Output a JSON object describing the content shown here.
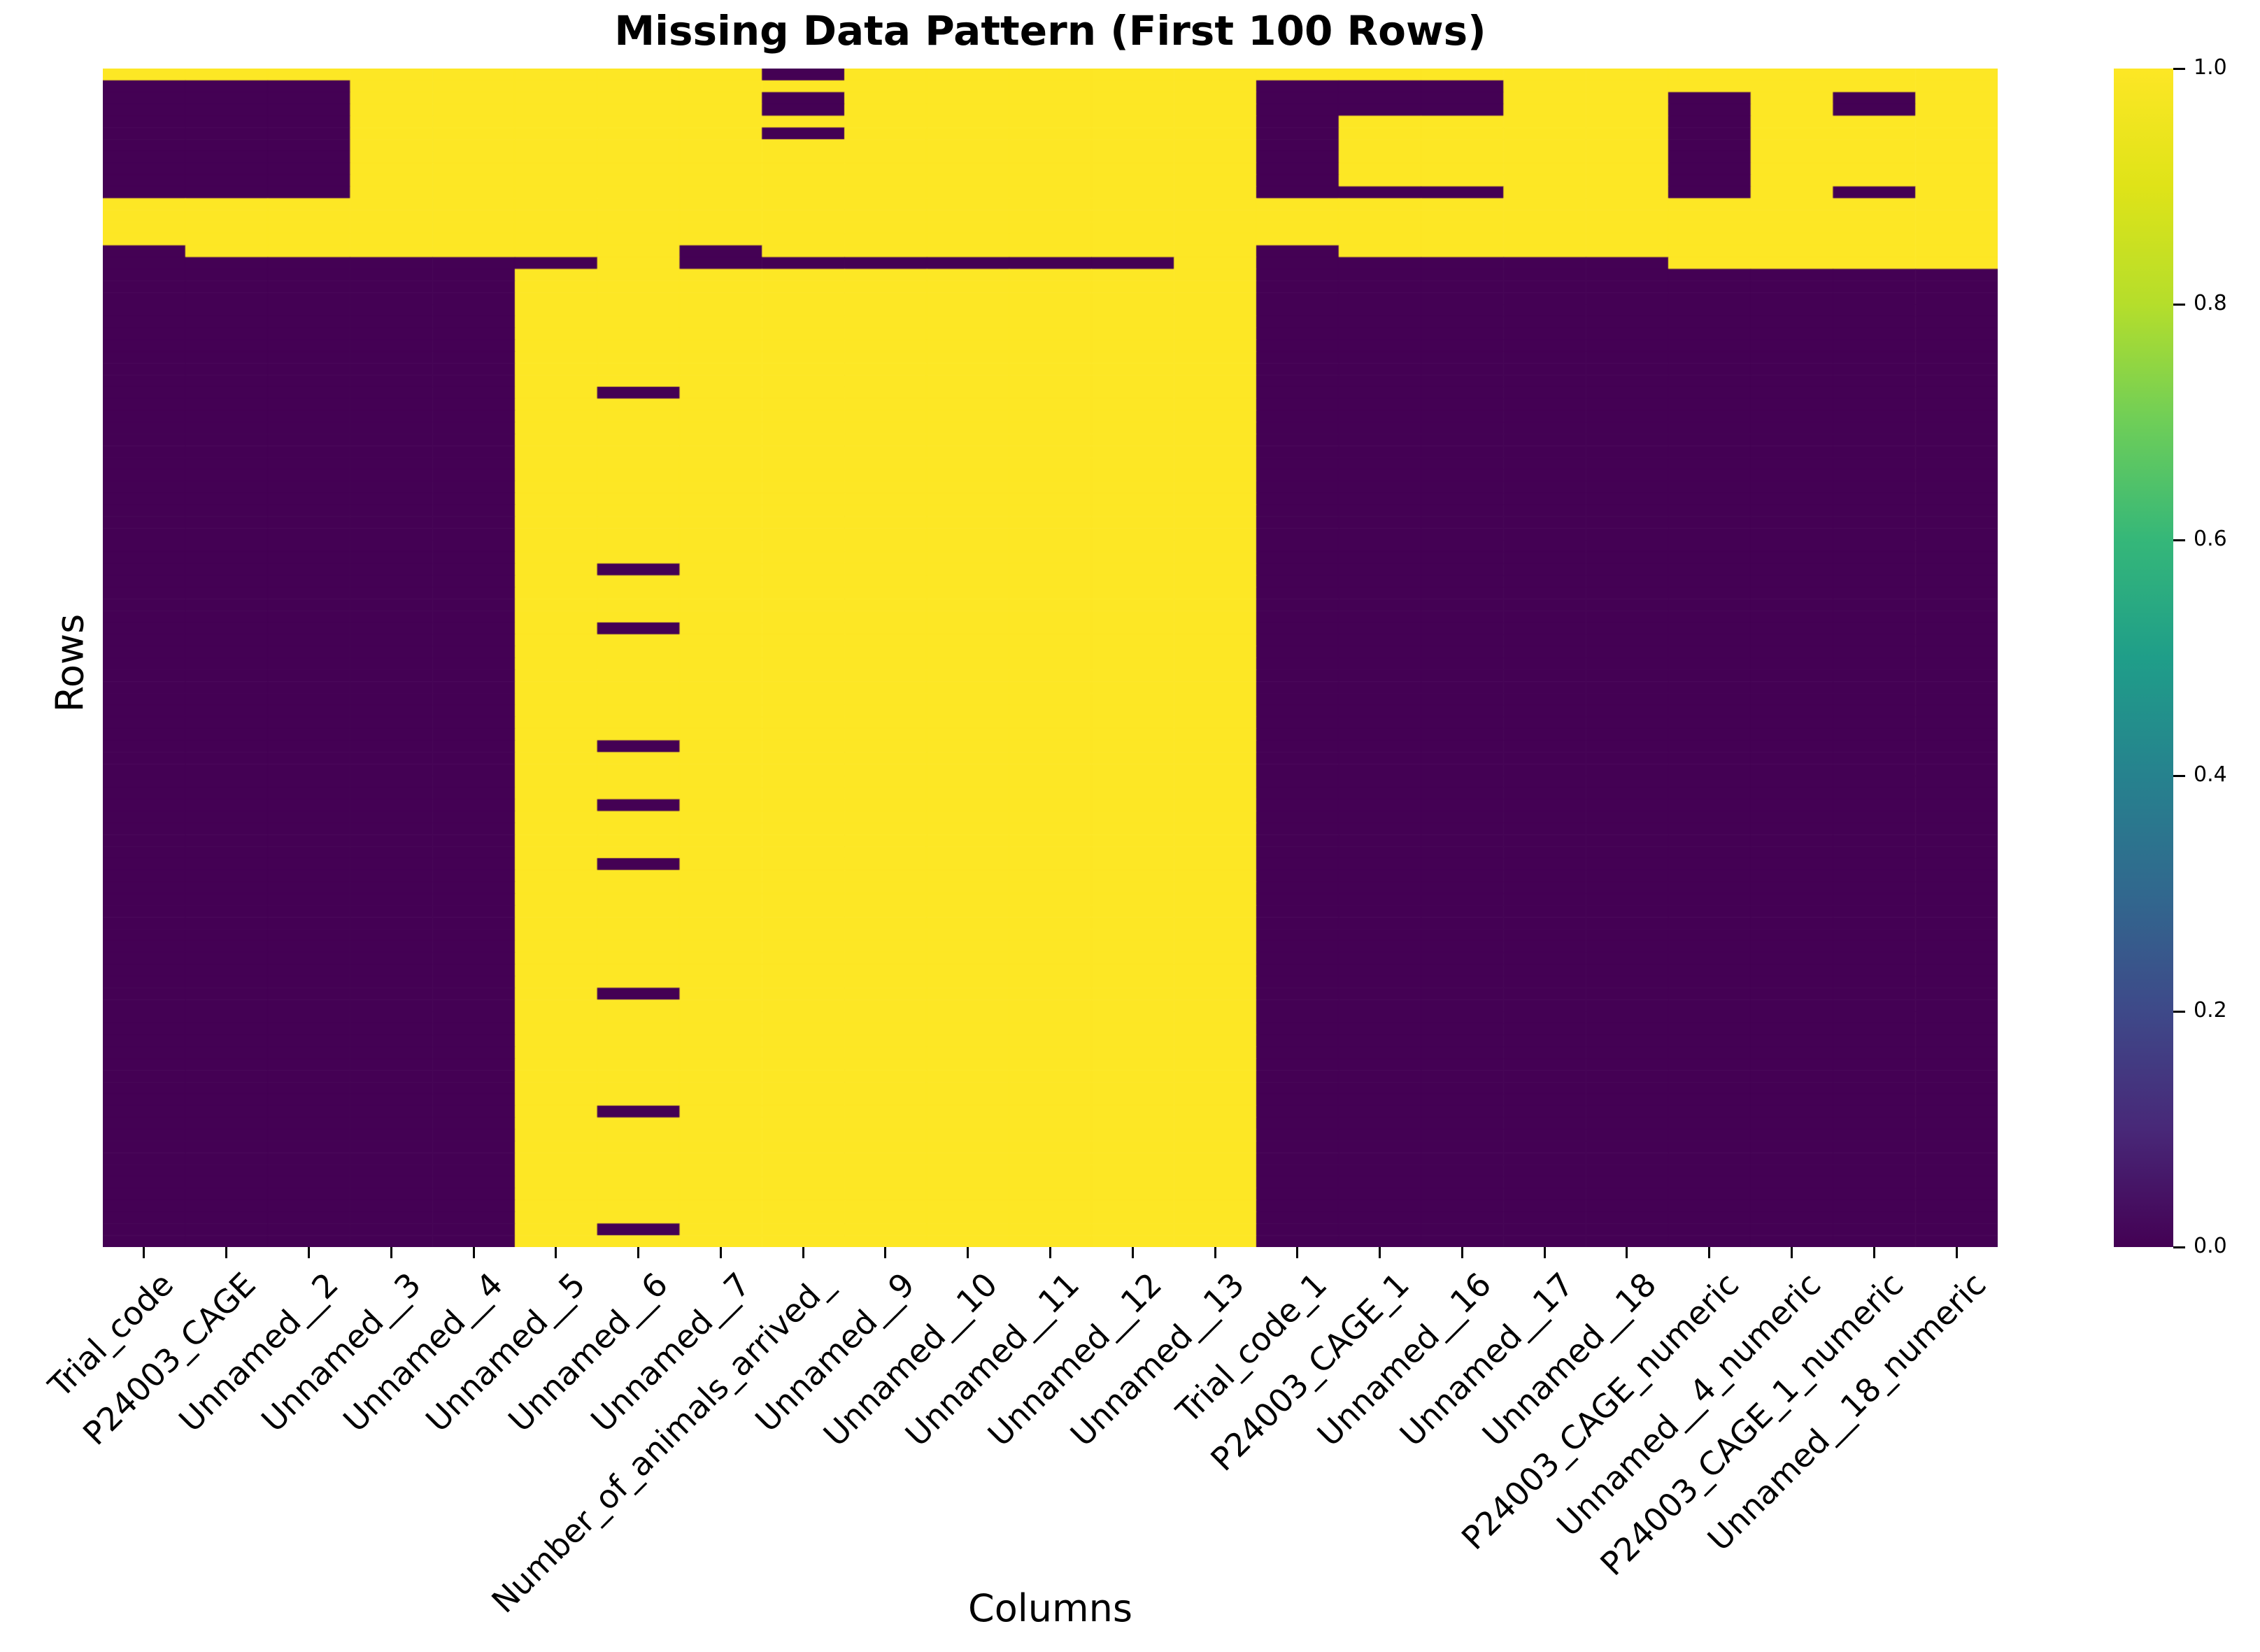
{
  "chart_data": {
    "type": "heatmap",
    "title": "Missing Data Pattern (First 100 Rows)",
    "xlabel": "Columns",
    "ylabel": "Rows",
    "n_rows": 100,
    "colormap": "viridis",
    "vmin": 0,
    "vmax": 1,
    "legend_position": "right-colorbar",
    "grid": false,
    "cell_values_meaning": {
      "1": "missing (yellow)",
      "0": "present (dark purple)"
    },
    "missing_color": "#fde725",
    "present_color": "#440154",
    "viridis_stops_bottom_to_top": [
      "#440154",
      "#482878",
      "#3e4989",
      "#31688e",
      "#26828e",
      "#1f9e89",
      "#35b779",
      "#6ece58",
      "#b5de2b",
      "#dfe318",
      "#fde725"
    ],
    "colorbar_ticks": [
      {
        "label": "1.0",
        "value": 1.0
      },
      {
        "label": "0.8",
        "value": 0.8
      },
      {
        "label": "0.6",
        "value": 0.6
      },
      {
        "label": "0.4",
        "value": 0.4
      },
      {
        "label": "0.2",
        "value": 0.2
      },
      {
        "label": "0.0",
        "value": 0.0
      }
    ],
    "columns": [
      "Trial_code",
      "P24003_CAGE",
      "Unnamed__2",
      "Unnamed__3",
      "Unnamed__4",
      "Unnamed__5",
      "Unnamed__6",
      "Unnamed__7",
      "Number_of_animals_arrived_",
      "Unnamed__9",
      "Unnamed__10",
      "Unnamed__11",
      "Unnamed__12",
      "Unnamed__13",
      "Trial_code_1",
      "P24003_CAGE_1",
      "Unnamed__16",
      "Unnamed__17",
      "Unnamed__18",
      "P24003_CAGE_numeric",
      "Unnamed__4_numeric",
      "P24003_CAGE_1_numeric",
      "Unnamed__18_numeric"
    ],
    "rows": [
      "11111111011111111111111",
      "00011111111111000111111",
      "00011111011111000110101",
      "00011111011111000110101",
      "00011111111111011110111",
      "00011111011111011110111",
      "00011111111111011110111",
      "00011111111111011110111",
      "00011111111111011110111",
      "00011111111111011110111",
      "00011111111111000110101",
      "11111111111111111111111",
      "11111111111111111111111",
      "11111111111111111111111",
      "11111111111111111111111",
      "01111110111111011111111",
      "00000010000001000001111",
      "00000111111111000000000",
      "00000111111111000000000",
      "00000111111111000000000",
      "00000111111111000000000",
      "00000111111111000000000",
      "00000111111111000000000",
      "00000111111111000000000",
      "00000111111111000000000",
      "00000111111111000000000",
      "00000111111111000000000",
      "00000101111111000000000",
      "00000111111111000000000",
      "00000111111111000000000",
      "00000111111111000000000",
      "00000111111111000000000",
      "00000111111111000000000",
      "00000111111111000000000",
      "00000111111111000000000",
      "00000111111111000000000",
      "00000111111111000000000",
      "00000111111111000000000",
      "00000111111111000000000",
      "00000111111111000000000",
      "00000111111111000000000",
      "00000111111111000000000",
      "00000101111111000000000",
      "00000111111111000000000",
      "00000111111111000000000",
      "00000111111111000000000",
      "00000111111111000000000",
      "00000101111111000000000",
      "00000111111111000000000",
      "00000111111111000000000",
      "00000111111111000000000",
      "00000111111111000000000",
      "00000111111111000000000",
      "00000111111111000000000",
      "00000111111111000000000",
      "00000111111111000000000",
      "00000111111111000000000",
      "00000101111111000000000",
      "00000111111111000000000",
      "00000111111111000000000",
      "00000111111111000000000",
      "00000111111111000000000",
      "00000101111111000000000",
      "00000111111111000000000",
      "00000111111111000000000",
      "00000111111111000000000",
      "00000111111111000000000",
      "00000101111111000000000",
      "00000111111111000000000",
      "00000111111111000000000",
      "00000111111111000000000",
      "00000111111111000000000",
      "00000111111111000000000",
      "00000111111111000000000",
      "00000111111111000000000",
      "00000111111111000000000",
      "00000111111111000000000",
      "00000111111111000000000",
      "00000101111111000000000",
      "00000111111111000000000",
      "00000111111111000000000",
      "00000111111111000000000",
      "00000111111111000000000",
      "00000111111111000000000",
      "00000111111111000000000",
      "00000111111111000000000",
      "00000111111111000000000",
      "00000111111111000000000",
      "00000101111111000000000",
      "00000111111111000000000",
      "00000111111111000000000",
      "00000111111111000000000",
      "00000111111111000000000",
      "00000111111111000000000",
      "00000111111111000000000",
      "00000111111111000000000",
      "00000111111111000000000",
      "00000111111111000000000",
      "00000101111111000000000",
      "00000111111111000000000",
      "00000111111111000000000"
    ]
  }
}
